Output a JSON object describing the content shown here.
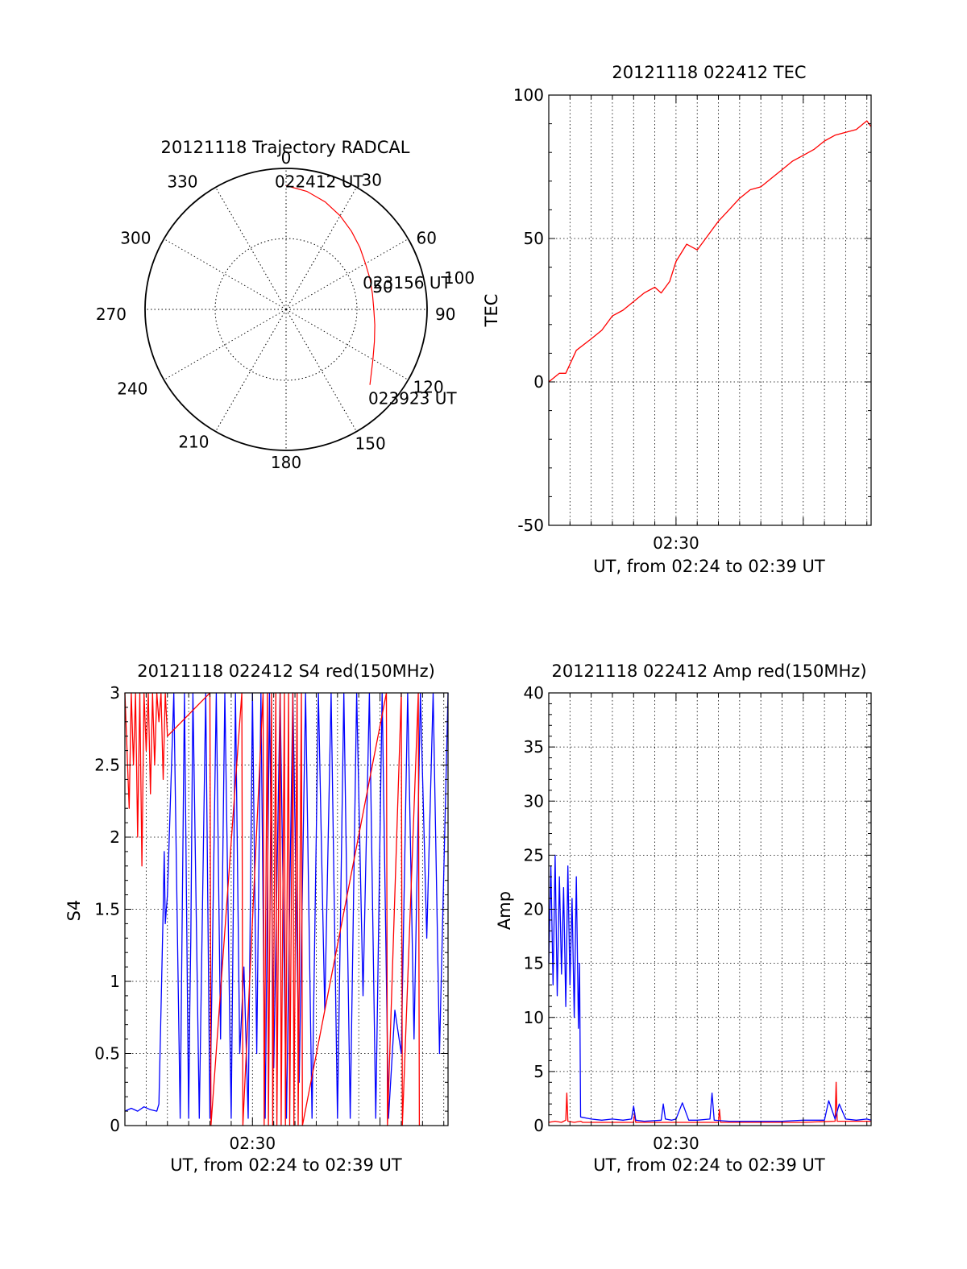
{
  "colors": {
    "red": "#ff0000",
    "blue": "#0000ff",
    "axis": "#000000",
    "grid": "#000000"
  },
  "chart_data": [
    {
      "id": "trajectory",
      "type": "polar",
      "title": "20121118 Trajectory RADCAL",
      "angle_labels": [
        "0",
        "30",
        "60",
        "90",
        "120",
        "150",
        "180",
        "210",
        "240",
        "270",
        "300",
        "330"
      ],
      "radius_labels": [
        "50",
        "100"
      ],
      "zenith_max": 90,
      "grid": true,
      "trajectory": {
        "azimuth_deg": [
          0,
          10,
          20,
          30,
          40,
          50,
          60,
          70,
          80,
          90,
          100,
          110,
          120,
          132
        ],
        "zenith_deg": [
          79,
          76.5,
          73,
          69,
          65,
          61.5,
          58.5,
          57,
          56,
          56,
          57.5,
          60,
          64,
          72
        ]
      },
      "annotations": [
        {
          "text": "022412 UT",
          "azimuth_deg": 0,
          "zenith_deg": 79
        },
        {
          "text": "023156 UT",
          "azimuth_deg": 75,
          "zenith_deg": 56
        },
        {
          "text": "023923 UT",
          "azimuth_deg": 132,
          "zenith_deg": 72
        }
      ]
    },
    {
      "id": "tec",
      "type": "line",
      "title": "20121118 022412 TEC",
      "ylabel": "TEC",
      "xlabel": "UT, from 02:24 to 02:39 UT",
      "x_tick_labels": [
        {
          "minute": 6,
          "label": "02:30"
        }
      ],
      "y_ticks": [
        -50,
        0,
        50,
        100
      ],
      "ylim": [
        -50,
        100
      ],
      "xlim_minutes": [
        0,
        15.2
      ],
      "grid": true,
      "series": [
        {
          "color": "red",
          "x": [
            0,
            0.5,
            0.8,
            1.3,
            2.0,
            2.5,
            3.0,
            3.5,
            4.0,
            4.5,
            5.0,
            5.3,
            5.7,
            6.0,
            6.5,
            7.0,
            7.5,
            7.7,
            8.0,
            8.5,
            9.0,
            9.5,
            10.0,
            10.5,
            11.0,
            11.5,
            12.0,
            12.5,
            13.0,
            13.5,
            14.0,
            14.5,
            15.0,
            15.2
          ],
          "y": [
            0,
            3,
            3,
            11,
            15,
            18,
            23,
            25,
            28,
            31,
            33,
            31,
            35,
            42,
            48,
            46,
            51,
            53,
            56,
            60,
            64,
            67,
            68,
            71,
            74,
            77,
            79,
            81,
            84,
            86,
            87,
            88,
            91,
            89
          ]
        }
      ]
    },
    {
      "id": "s4",
      "type": "line",
      "title": "20121118 022412 S4 red(150MHz)",
      "ylabel": "S4",
      "xlabel": "UT, from 02:24 to 02:39 UT",
      "x_tick_labels": [
        {
          "minute": 6,
          "label": "02:30"
        }
      ],
      "y_ticks": [
        0,
        0.5,
        1,
        1.5,
        2,
        2.5,
        3
      ],
      "y_tick_labels": [
        "0",
        "0.5",
        "1",
        "1.5",
        "2",
        "2.5",
        "3"
      ],
      "ylim": [
        0,
        3
      ],
      "xlim_minutes": [
        0,
        15.2
      ],
      "grid": true,
      "series": [
        {
          "color": "blue",
          "x": [
            0,
            0.3,
            0.6,
            0.9,
            1.2,
            1.5,
            1.6,
            1.7,
            1.8,
            1.85,
            1.9,
            2.0,
            2.3,
            2.6,
            2.8,
            3.0,
            3.05,
            3.1,
            3.2,
            3.5,
            3.8,
            4.0,
            4.3,
            4.5,
            4.7,
            5.0,
            5.2,
            5.4,
            5.6,
            5.8,
            6.0,
            6.2,
            6.4,
            6.6,
            6.8,
            7.0,
            7.3,
            7.6,
            7.9,
            8.2,
            8.5,
            8.8,
            9.1,
            9.4,
            9.7,
            10.0,
            10.3,
            10.6,
            10.9,
            11.2,
            11.5,
            11.8,
            12.1,
            12.4,
            12.7,
            12.9,
            13.0,
            13.3,
            13.6,
            13.9,
            14.2,
            14.5,
            14.8,
            15.2
          ],
          "y": [
            0.1,
            0.12,
            0.1,
            0.13,
            0.11,
            0.1,
            0.15,
            0.8,
            1.5,
            1.9,
            1.4,
            1.6,
            3,
            0.05,
            3,
            0.05,
            0.8,
            1.3,
            3,
            0.05,
            3,
            0.05,
            3,
            0.6,
            3,
            0.05,
            3,
            0.5,
            1.1,
            0.05,
            3,
            0.5,
            3,
            0.05,
            3,
            0.4,
            3,
            0.05,
            3,
            0.3,
            3,
            0.05,
            3,
            0.8,
            3,
            0.05,
            3,
            0.05,
            3,
            0.9,
            3,
            0.05,
            3,
            0.05,
            0.8,
            0.6,
            0.5,
            3,
            0.6,
            3,
            1.3,
            3,
            0.5,
            3
          ]
        },
        {
          "color": "red",
          "x": [
            0,
            0.2,
            0.3,
            0.4,
            0.5,
            0.6,
            0.7,
            0.8,
            0.9,
            1.0,
            1.1,
            1.2,
            1.3,
            1.4,
            1.5,
            1.6,
            1.7,
            1.8,
            1.9,
            2.0,
            4.0,
            4.05,
            5.5,
            5.55,
            6.5,
            6.55,
            6.7,
            6.75,
            6.9,
            6.95,
            7.1,
            7.15,
            7.3,
            7.35,
            7.5,
            7.55,
            7.7,
            7.75,
            7.9,
            7.95,
            8.1,
            8.15,
            8.3,
            8.35,
            12.3,
            12.35,
            13.0,
            13.05,
            13.8,
            13.85
          ],
          "y": [
            3,
            2.2,
            3,
            2.5,
            3,
            2.0,
            3,
            1.8,
            3,
            2.6,
            3,
            2.3,
            3,
            2.5,
            3,
            2.8,
            3,
            2.4,
            3,
            2.7,
            3,
            0,
            3,
            0,
            3,
            0,
            3,
            0,
            3,
            0,
            3,
            0,
            3,
            0,
            3,
            0,
            3,
            0,
            3,
            0,
            3,
            0,
            3,
            0,
            3,
            0,
            3,
            0,
            3,
            0
          ]
        }
      ]
    },
    {
      "id": "amp",
      "type": "line",
      "title": "20121118 022412 Amp red(150MHz)",
      "ylabel": "Amp",
      "xlabel": "UT, from 02:24 to 02:39 UT",
      "x_tick_labels": [
        {
          "minute": 6,
          "label": "02:30"
        }
      ],
      "y_ticks": [
        0,
        5,
        10,
        15,
        20,
        25,
        30,
        35,
        40
      ],
      "ylim": [
        0,
        40
      ],
      "xlim_minutes": [
        0,
        15.2
      ],
      "grid": true,
      "series": [
        {
          "color": "red",
          "x": [
            0,
            0.3,
            0.6,
            0.8,
            0.85,
            0.9,
            1.2,
            1.5,
            1.6,
            2.0,
            4.0,
            4.05,
            4.1,
            8.0,
            8.05,
            8.1,
            12.0,
            13.5,
            13.55,
            13.6,
            15.2
          ],
          "y": [
            0.3,
            0.4,
            0.3,
            0.5,
            3,
            0.4,
            0.3,
            0.4,
            0.3,
            0.3,
            0.3,
            1.2,
            0.3,
            0.3,
            1.5,
            0.3,
            0.3,
            0.4,
            4,
            0.4,
            0.4
          ]
        },
        {
          "color": "blue",
          "x": [
            0,
            0.1,
            0.2,
            0.3,
            0.4,
            0.5,
            0.6,
            0.7,
            0.8,
            0.9,
            1.0,
            1.1,
            1.2,
            1.3,
            1.4,
            1.45,
            1.5,
            2.0,
            2.5,
            3.0,
            3.5,
            3.9,
            4.0,
            4.1,
            4.5,
            5.3,
            5.4,
            5.5,
            5.8,
            6.0,
            6.3,
            6.6,
            7.0,
            7.6,
            7.7,
            7.8,
            8.5,
            9.0,
            10.0,
            11.0,
            12.0,
            13.0,
            13.2,
            13.5,
            13.7,
            14.0,
            14.5,
            15.0,
            15.2
          ],
          "y": [
            15,
            24,
            13,
            25,
            12,
            23,
            14,
            22,
            11,
            24,
            13,
            21,
            10,
            23,
            9,
            15,
            0.8,
            0.6,
            0.5,
            0.6,
            0.5,
            0.6,
            1.8,
            0.5,
            0.4,
            0.5,
            2.0,
            0.6,
            0.5,
            0.6,
            2.1,
            0.5,
            0.5,
            0.6,
            3.0,
            0.5,
            0.4,
            0.4,
            0.4,
            0.4,
            0.5,
            0.5,
            2.3,
            0.6,
            2.0,
            0.6,
            0.5,
            0.6,
            0.5
          ]
        }
      ]
    }
  ]
}
